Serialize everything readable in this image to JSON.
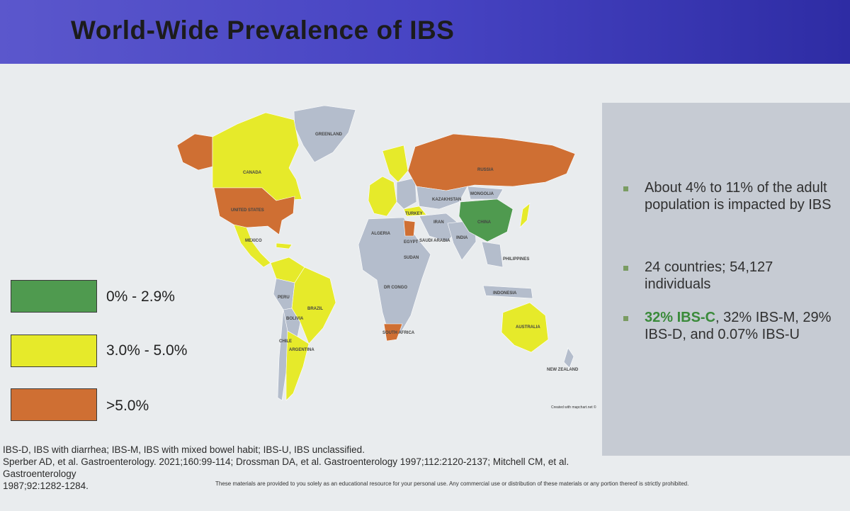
{
  "title": "World-Wide Prevalence of IBS",
  "colors": {
    "low": "#4f9a4f",
    "mid": "#e6ea2a",
    "high": "#cf6f33",
    "no_data": "#b4bdcc",
    "title_bar": "#4744c3"
  },
  "legend": [
    {
      "label": "0% - 2.9%",
      "color": "#4f9a4f"
    },
    {
      "label": "3.0% - 5.0%",
      "color": "#e6ea2a"
    },
    {
      "label": ">5.0%",
      "color": "#cf6f33"
    }
  ],
  "bullets": [
    {
      "text": "About 4% to 11% of the adult population is impacted by IBS"
    },
    {
      "text": "24 countries; 54,127 individuals"
    },
    {
      "highlight": "32% IBS-C",
      "rest": ", 32% IBS-M, 29% IBS-D, and 0.07% IBS-U"
    }
  ],
  "map_labels": {
    "greenland": "GREENLAND",
    "canada": "CANADA",
    "united_states": "UNITED STATES",
    "mexico": "MEXICO",
    "brazil": "BRAZIL",
    "russia": "RUSSIA",
    "kazakhstan": "KAZAKHSTAN",
    "mongolia": "MONGOLIA",
    "china": "CHINA",
    "turkey": "TURKEY",
    "algeria": "ALGERIA",
    "egypt": "EGYPT",
    "india": "INDIA",
    "indonesia": "INDONESIA",
    "australia": "AUSTRALIA",
    "new_zealand": "NEW ZEALAND",
    "south_africa": "SOUTH AFRICA",
    "argentina": "ARGENTINA",
    "peru": "PERU",
    "bolivia": "BOLIVIA",
    "chile": "CHILE",
    "sudan": "SUDAN",
    "dr_congo": "DR CONGO",
    "iran": "IRAN",
    "saudi_arabia": "SAUDI ARABIA",
    "philippines": "PHILIPPINES"
  },
  "map_credit": "Created with mapchart.net ©",
  "footnote_lines": [
    "IBS-D, IBS with diarrhea; IBS-M, IBS with mixed bowel habit; IBS-U, IBS unclassified.",
    "Sperber AD, et al. Gastroenterology. 2021;160:99-114; Drossman DA, et al. Gastroenterology 1997;112:2120-2137; Mitchell CM, et al. Gastroenterology",
    "1987;92:1282-1284."
  ],
  "disclaimer": "These materials are provided to you solely as an educational resource for your personal use. Any commercial use or distribution of these materials or any portion thereof is strictly prohibited."
}
